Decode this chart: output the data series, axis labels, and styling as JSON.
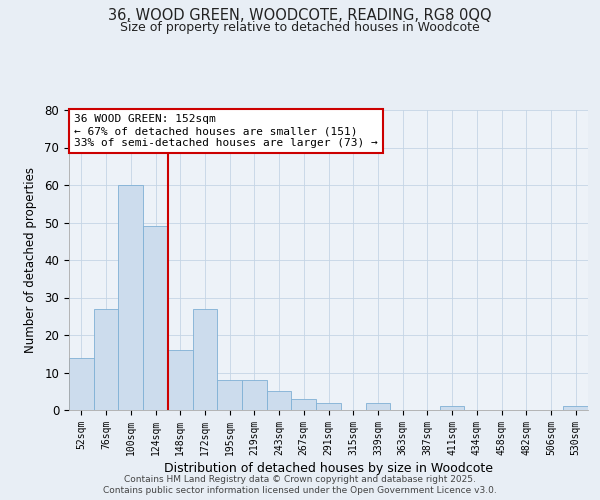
{
  "title": "36, WOOD GREEN, WOODCOTE, READING, RG8 0QQ",
  "subtitle": "Size of property relative to detached houses in Woodcote",
  "xlabel": "Distribution of detached houses by size in Woodcote",
  "ylabel": "Number of detached properties",
  "bin_labels": [
    "52sqm",
    "76sqm",
    "100sqm",
    "124sqm",
    "148sqm",
    "172sqm",
    "195sqm",
    "219sqm",
    "243sqm",
    "267sqm",
    "291sqm",
    "315sqm",
    "339sqm",
    "363sqm",
    "387sqm",
    "411sqm",
    "434sqm",
    "458sqm",
    "482sqm",
    "506sqm",
    "530sqm"
  ],
  "bar_heights": [
    14,
    27,
    60,
    49,
    16,
    27,
    8,
    8,
    5,
    3,
    2,
    0,
    2,
    0,
    0,
    1,
    0,
    0,
    0,
    0,
    1
  ],
  "bar_color": "#ccdced",
  "bar_edge_color": "#7fb0d5",
  "vline_x_idx": 4,
  "vline_color": "#cc0000",
  "annotation_text": "36 WOOD GREEN: 152sqm\n← 67% of detached houses are smaller (151)\n33% of semi-detached houses are larger (73) →",
  "annotation_box_color": "#ffffff",
  "annotation_box_edge": "#cc0000",
  "ylim": [
    0,
    80
  ],
  "yticks": [
    0,
    10,
    20,
    30,
    40,
    50,
    60,
    70,
    80
  ],
  "footer1": "Contains HM Land Registry data © Crown copyright and database right 2025.",
  "footer2": "Contains public sector information licensed under the Open Government Licence v3.0.",
  "bg_color": "#e8eef5",
  "plot_bg_color": "#edf2f8",
  "grid_color": "#c5d5e5"
}
